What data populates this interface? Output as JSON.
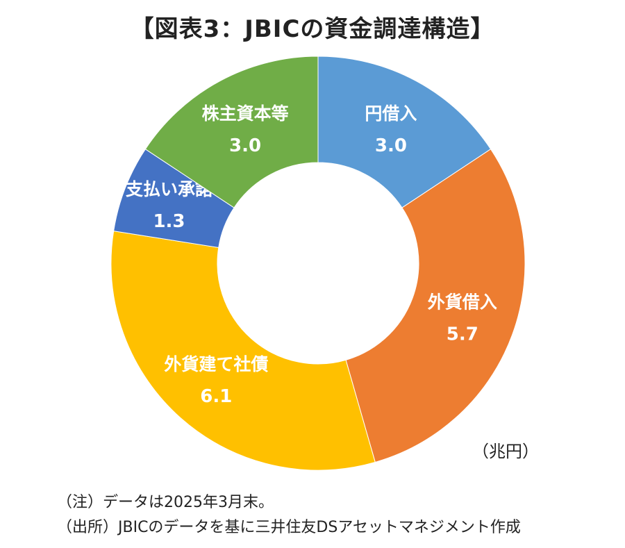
{
  "title": "【図表3：JBICの資金調達構造】",
  "unit_label": "（兆円）",
  "notes": [
    "（注）データは2025年3月末。",
    "（出所）JBICのデータを基に三井住友DSアセットマネジメント作成"
  ],
  "chart_data": {
    "type": "pie",
    "subtype": "donut",
    "unit": "兆円",
    "categories": [
      "円借入",
      "外貨借入",
      "外貨建て社債",
      "支払い承諾",
      "株主資本等"
    ],
    "values": [
      3.0,
      5.7,
      6.1,
      1.3,
      3.0
    ],
    "value_labels": [
      "3.0",
      "5.7",
      "6.1",
      "1.3",
      "3.0"
    ],
    "colors": [
      "#5b9bd5",
      "#ed7d31",
      "#ffc000",
      "#4472c4",
      "#70ad47"
    ],
    "start_angle": "12 o'clock",
    "direction": "clockwise",
    "legend": "none"
  }
}
